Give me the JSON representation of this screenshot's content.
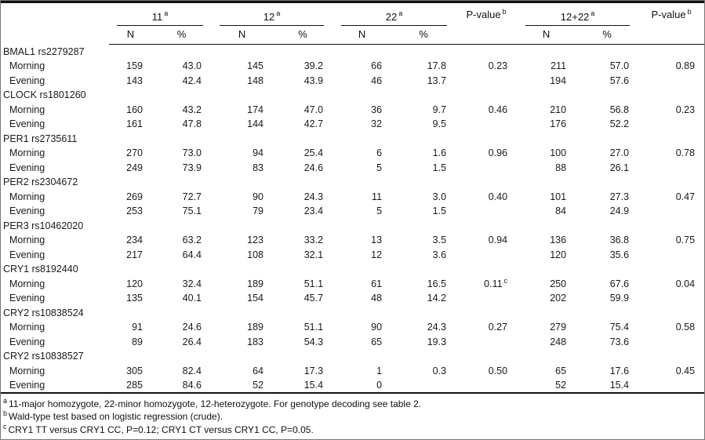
{
  "table": {
    "header": {
      "groups": [
        {
          "label": "11",
          "sup": "a"
        },
        {
          "label": "12",
          "sup": "a"
        },
        {
          "label": "22",
          "sup": "a"
        },
        {
          "label": "12+22",
          "sup": "a"
        }
      ],
      "pvalue": {
        "label": "P-value",
        "sup": "b"
      },
      "sub_n": "N",
      "sub_pct": "%"
    },
    "groups": [
      {
        "gene": "BMAL1 rs2279287",
        "rows": [
          {
            "label": "Morning",
            "n11": "159",
            "p11": "43.0",
            "n12": "145",
            "p12": "39.2",
            "n22": "66",
            "p22": "17.8",
            "pv1": "0.23",
            "pv1_sup": "",
            "n1222": "211",
            "p1222": "57.0",
            "pv2": "0.89"
          },
          {
            "label": "Evening",
            "n11": "143",
            "p11": "42.4",
            "n12": "148",
            "p12": "43.9",
            "n22": "46",
            "p22": "13.7",
            "pv1": "",
            "pv1_sup": "",
            "n1222": "194",
            "p1222": "57.6",
            "pv2": ""
          }
        ]
      },
      {
        "gene": "CLOCK rs1801260",
        "rows": [
          {
            "label": "Morning",
            "n11": "160",
            "p11": "43.2",
            "n12": "174",
            "p12": "47.0",
            "n22": "36",
            "p22": "9.7",
            "pv1": "0.46",
            "pv1_sup": "",
            "n1222": "210",
            "p1222": "56.8",
            "pv2": "0.23"
          },
          {
            "label": "Evening",
            "n11": "161",
            "p11": "47.8",
            "n12": "144",
            "p12": "42.7",
            "n22": "32",
            "p22": "9.5",
            "pv1": "",
            "pv1_sup": "",
            "n1222": "176",
            "p1222": "52.2",
            "pv2": ""
          }
        ]
      },
      {
        "gene": "PER1 rs2735611",
        "rows": [
          {
            "label": "Morning",
            "n11": "270",
            "p11": "73.0",
            "n12": "94",
            "p12": "25.4",
            "n22": "6",
            "p22": "1.6",
            "pv1": "0.96",
            "pv1_sup": "",
            "n1222": "100",
            "p1222": "27.0",
            "pv2": "0.78"
          },
          {
            "label": "Evening",
            "n11": "249",
            "p11": "73.9",
            "n12": "83",
            "p12": "24.6",
            "n22": "5",
            "p22": "1.5",
            "pv1": "",
            "pv1_sup": "",
            "n1222": "88",
            "p1222": "26.1",
            "pv2": ""
          }
        ]
      },
      {
        "gene": "PER2 rs2304672",
        "rows": [
          {
            "label": "Morning",
            "n11": "269",
            "p11": "72.7",
            "n12": "90",
            "p12": "24.3",
            "n22": "11",
            "p22": "3.0",
            "pv1": "0.40",
            "pv1_sup": "",
            "n1222": "101",
            "p1222": "27.3",
            "pv2": "0.47"
          },
          {
            "label": "Evening",
            "n11": "253",
            "p11": "75.1",
            "n12": "79",
            "p12": "23.4",
            "n22": "5",
            "p22": "1.5",
            "pv1": "",
            "pv1_sup": "",
            "n1222": "84",
            "p1222": "24.9",
            "pv2": ""
          }
        ]
      },
      {
        "gene": "PER3 rs10462020",
        "rows": [
          {
            "label": "Morning",
            "n11": "234",
            "p11": "63.2",
            "n12": "123",
            "p12": "33.2",
            "n22": "13",
            "p22": "3.5",
            "pv1": "0.94",
            "pv1_sup": "",
            "n1222": "136",
            "p1222": "36.8",
            "pv2": "0.75"
          },
          {
            "label": "Evening",
            "n11": "217",
            "p11": "64.4",
            "n12": "108",
            "p12": "32.1",
            "n22": "12",
            "p22": "3.6",
            "pv1": "",
            "pv1_sup": "",
            "n1222": "120",
            "p1222": "35.6",
            "pv2": ""
          }
        ]
      },
      {
        "gene": "CRY1 rs8192440",
        "rows": [
          {
            "label": "Morning",
            "n11": "120",
            "p11": "32.4",
            "n12": "189",
            "p12": "51.1",
            "n22": "61",
            "p22": "16.5",
            "pv1": "0.11",
            "pv1_sup": "c",
            "n1222": "250",
            "p1222": "67.6",
            "pv2": "0.04"
          },
          {
            "label": "Evening",
            "n11": "135",
            "p11": "40.1",
            "n12": "154",
            "p12": "45.7",
            "n22": "48",
            "p22": "14.2",
            "pv1": "",
            "pv1_sup": "",
            "n1222": "202",
            "p1222": "59.9",
            "pv2": ""
          }
        ]
      },
      {
        "gene": "CRY2 rs10838524",
        "rows": [
          {
            "label": "Morning",
            "n11": "91",
            "p11": "24.6",
            "n12": "189",
            "p12": "51.1",
            "n22": "90",
            "p22": "24.3",
            "pv1": "0.27",
            "pv1_sup": "",
            "n1222": "279",
            "p1222": "75.4",
            "pv2": "0.58"
          },
          {
            "label": "Evening",
            "n11": "89",
            "p11": "26.4",
            "n12": "183",
            "p12": "54.3",
            "n22": "65",
            "p22": "19.3",
            "pv1": "",
            "pv1_sup": "",
            "n1222": "248",
            "p1222": "73.6",
            "pv2": ""
          }
        ]
      },
      {
        "gene": "CRY2 rs10838527",
        "rows": [
          {
            "label": "Morning",
            "n11": "305",
            "p11": "82.4",
            "n12": "64",
            "p12": "17.3",
            "n22": "1",
            "p22": "0.3",
            "pv1": "0.50",
            "pv1_sup": "",
            "n1222": "65",
            "p1222": "17.6",
            "pv2": "0.45"
          },
          {
            "label": "Evening",
            "n11": "285",
            "p11": "84.6",
            "n12": "52",
            "p12": "15.4",
            "n22": "0",
            "p22": "",
            "pv1": "",
            "pv1_sup": "",
            "n1222": "52",
            "p1222": "15.4",
            "pv2": ""
          }
        ]
      }
    ]
  },
  "footnotes": [
    {
      "sup": "a",
      "text": "11-major homozygote, 22-minor homozygote, 12-heterozygote. For genotype decoding see table 2."
    },
    {
      "sup": "b",
      "text": "Wald-type test based on logistic regression (crude)."
    },
    {
      "sup": "c",
      "text": "CRY1 TT versus CRY1 CC, P=0.12; CRY1 CT versus CRY1 CC, P=0.05."
    }
  ]
}
